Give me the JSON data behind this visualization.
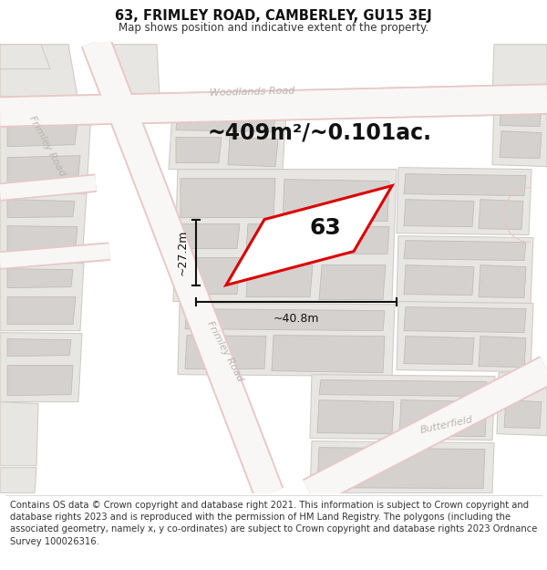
{
  "title": "63, FRIMLEY ROAD, CAMBERLEY, GU15 3EJ",
  "subtitle": "Map shows position and indicative extent of the property.",
  "footer": "Contains OS data © Crown copyright and database right 2021. This information is subject to Crown copyright and database rights 2023 and is reproduced with the permission of HM Land Registry. The polygons (including the associated geometry, namely x, y co-ordinates) are subject to Crown copyright and database rights 2023 Ordnance Survey 100026316.",
  "title_fontsize": 10.5,
  "subtitle_fontsize": 8.5,
  "footer_fontsize": 7.2,
  "area_text": "~409m²/~0.101ac.",
  "area_fontsize": 17,
  "label_63": "63",
  "label_fontsize": 18,
  "dim_fontsize": 9,
  "width_text": "~40.8m",
  "height_text": "~27.2m",
  "road_label_fontsize": 8,
  "map_bg": "#f7f5f3",
  "block_fill": "#e8e6e3",
  "block_edge": "#d0ccc8",
  "building_fill": "#d5d1ce",
  "building_edge": "#c0bcb8",
  "road_fill": "#f7f5f3",
  "road_pink_edge": "#e8c8c8",
  "road_label_color": "#b8b4b0",
  "highlight_color": "#dd0000",
  "dim_color": "#111111",
  "text_color": "#222222"
}
